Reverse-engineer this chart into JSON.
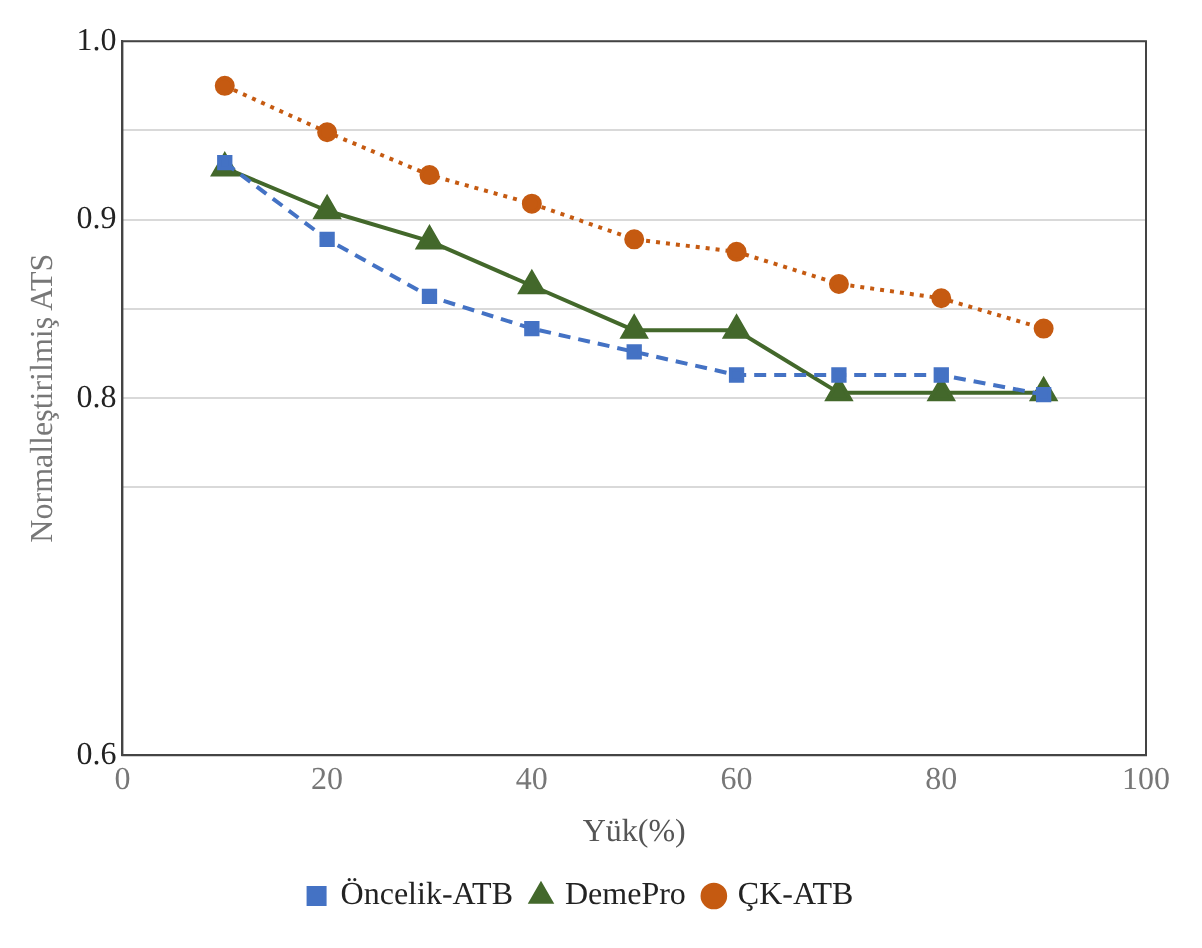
{
  "chart_data": {
    "type": "line",
    "xlabel": "Yük(%)",
    "ylabel": "Normalleştirilmiş ATS",
    "x": [
      10,
      20,
      30,
      40,
      50,
      60,
      70,
      80,
      90
    ],
    "xlim": [
      0,
      100
    ],
    "xticks": [
      0,
      20,
      40,
      60,
      80,
      100
    ],
    "ylim": [
      0.6,
      1.0
    ],
    "yticks": [
      {
        "value": 1.0,
        "label": "1.0"
      },
      {
        "value": 0.95,
        "label": null
      },
      {
        "value": 0.9,
        "label": "0.9"
      },
      {
        "value": 0.85,
        "label": null
      },
      {
        "value": 0.8,
        "label": "0.8"
      },
      {
        "value": 0.75,
        "label": null
      },
      {
        "value": 0.6,
        "label": "0.6"
      }
    ],
    "grid": "y",
    "legend": "bottom",
    "series": [
      {
        "name": "Öncelik-ATB",
        "color": "#4472c4",
        "marker": "square",
        "line_style": "dashed",
        "values": [
          0.932,
          0.889,
          0.857,
          0.839,
          0.826,
          0.813,
          0.813,
          0.813,
          0.802
        ]
      },
      {
        "name": "DemePro",
        "color": "#43682b",
        "marker": "triangle",
        "line_style": "solid",
        "values": [
          0.929,
          0.905,
          0.888,
          0.863,
          0.838,
          0.838,
          0.803,
          0.803,
          0.803
        ]
      },
      {
        "name": "ÇK-ATB",
        "color": "#c55a11",
        "marker": "circle",
        "line_style": "dotted",
        "values": [
          0.975,
          0.949,
          0.925,
          0.909,
          0.889,
          0.882,
          0.864,
          0.856,
          0.839
        ]
      }
    ]
  }
}
